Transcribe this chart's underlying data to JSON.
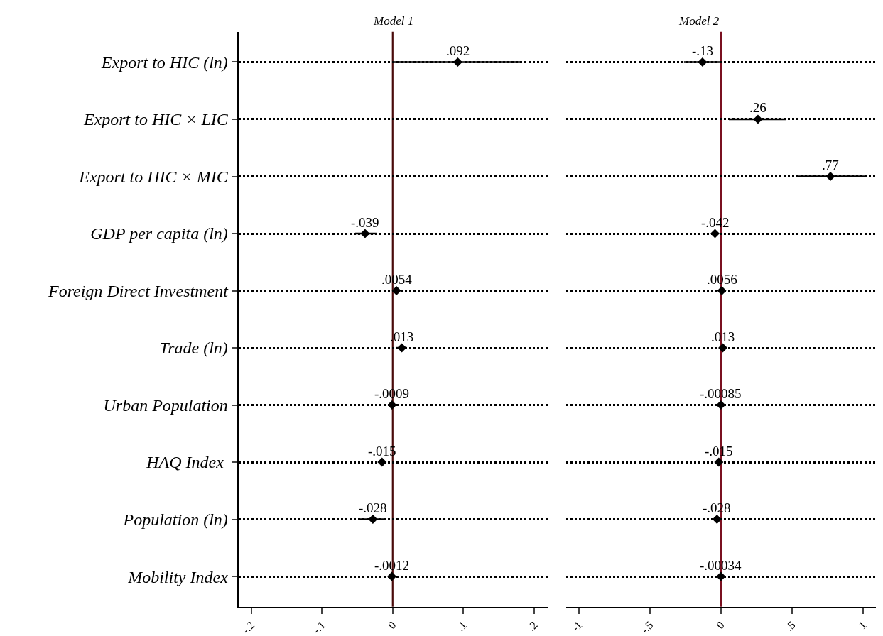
{
  "chart_data": [
    {
      "type": "scatter",
      "orientation": "horizontal",
      "title": "Model 1",
      "categories": [
        "Export to HIC (ln)",
        "Export to HIC × LIC",
        "Export to HIC × MIC",
        "GDP per capita (ln)",
        "Foreign Direct Investment",
        "Trade (ln)",
        "Urban Population",
        "HAQ Index ",
        "Population (ln)",
        "Mobility Index"
      ],
      "series": [
        {
          "color": "#000000",
          "values": [
            0.092,
            null,
            null,
            -0.039,
            0.0054,
            0.013,
            -0.0009,
            -0.015,
            -0.028,
            -0.0012
          ],
          "value_labels": [
            ".092",
            null,
            null,
            "-.039",
            ".0054",
            ".013",
            "-.0009",
            "-.015",
            "-.028",
            "-.0012"
          ],
          "errors": [
            [
              0.0,
              0.18
            ],
            null,
            null,
            [
              -0.053,
              -0.023
            ],
            null,
            [
              0.005,
              0.02
            ],
            null,
            null,
            [
              -0.048,
              -0.01
            ],
            null
          ]
        }
      ],
      "xlim": [
        -0.218,
        0.22
      ],
      "xticks": [
        {
          "value": -0.2,
          "label": "-.2"
        },
        {
          "value": -0.1,
          "label": "-.1"
        },
        0,
        {
          "value": 0.1,
          "label": ".1"
        },
        {
          "value": 0.2,
          "label": ".2"
        }
      ],
      "ref_lines": [
        {
          "axis": "x",
          "value": 0,
          "color": "#4a0a0a"
        }
      ],
      "grid": "y",
      "marker": "diamond"
    },
    {
      "type": "scatter",
      "orientation": "horizontal",
      "title": "Model 2",
      "categories": [
        "Export to HIC (ln)",
        "Export to HIC × LIC",
        "Export to HIC × MIC",
        "GDP per capita (ln)",
        "Foreign Direct Investment",
        "Trade (ln)",
        "Urban Population",
        "HAQ Index ",
        "Population (ln)",
        "Mobility Index"
      ],
      "series": [
        {
          "color": "#000000",
          "values": [
            -0.13,
            0.26,
            0.77,
            -0.042,
            0.0056,
            0.013,
            -0.00085,
            -0.015,
            -0.028,
            -0.00034
          ],
          "value_labels": [
            "-.13",
            ".26",
            ".77",
            "-.042",
            ".0056",
            ".013",
            "-.00085",
            "-.015",
            "-.028",
            "-.00034"
          ],
          "errors": [
            [
              -0.26,
              0.0
            ],
            [
              0.055,
              0.455
            ],
            [
              0.54,
              1.01
            ],
            null,
            null,
            null,
            null,
            null,
            null,
            null
          ]
        }
      ],
      "xlim": [
        -1.09,
        1.09
      ],
      "xticks": [
        {
          "value": -1,
          "label": "-1"
        },
        {
          "value": -0.5,
          "label": "-.5"
        },
        0,
        {
          "value": 0.5,
          "label": ".5"
        },
        1
      ],
      "ref_lines": [
        {
          "axis": "x",
          "value": 0,
          "color": "#7a1020"
        }
      ],
      "grid": "y",
      "marker": "diamond",
      "tick_labels": "x"
    }
  ]
}
